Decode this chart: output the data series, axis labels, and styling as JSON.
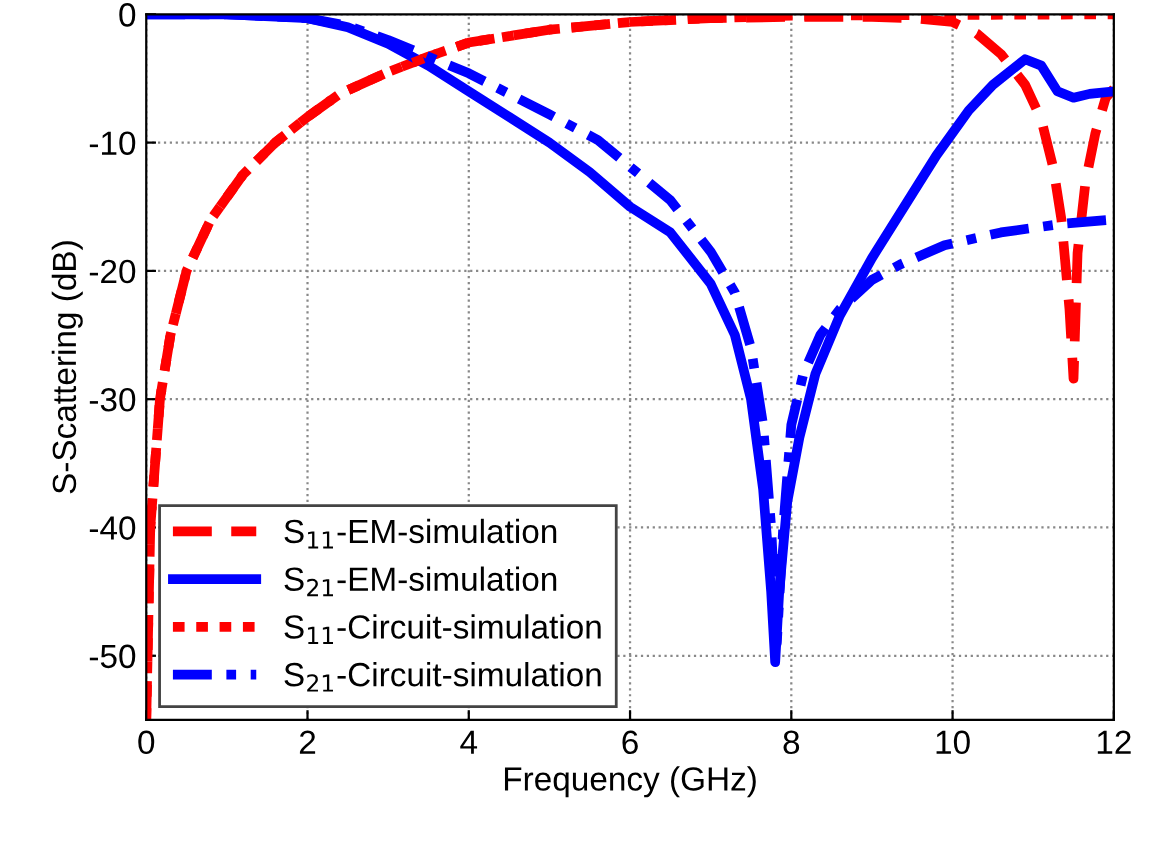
{
  "chart_data": {
    "type": "line",
    "xlabel": "Frequency (GHz)",
    "ylabel": "S-Scattering (dB)",
    "xlim": [
      0,
      12
    ],
    "xticks": [
      0,
      2,
      4,
      6,
      8,
      10,
      12
    ],
    "ylim": [
      -55,
      0
    ],
    "yticks": [
      0,
      -10,
      -20,
      -30,
      -40,
      -50
    ],
    "grid": true,
    "legend": "bottom left",
    "marker": "none",
    "series": [
      {
        "name": "S$_{11}$-EM-simulation",
        "color": "#ff0000",
        "line_style": "dashed",
        "x": [
          0,
          0.05,
          0.17,
          0.3,
          0.5,
          0.8,
          1.2,
          1.6,
          2,
          2.4,
          3,
          3.5,
          4,
          5,
          6,
          7,
          8,
          9,
          9.5,
          10,
          10.3,
          10.6,
          10.9,
          11.1,
          11.25,
          11.35,
          11.45,
          11.5,
          11.55,
          11.65,
          11.77,
          11.9,
          12
        ],
        "values": [
          -55,
          -40,
          -30,
          -25,
          -20,
          -16,
          -12.5,
          -10,
          -8,
          -6.2,
          -4.5,
          -3.3,
          -2.2,
          -1.2,
          -0.6,
          -0.3,
          -0.2,
          -0.2,
          -0.3,
          -0.6,
          -1.5,
          -3.1,
          -5.5,
          -8.2,
          -12,
          -16,
          -23,
          -28.4,
          -18.6,
          -13,
          -9.3,
          -6.5,
          -5.8
        ]
      },
      {
        "name": "S$_{21}$-EM-simulation",
        "color": "#0000ff",
        "line_style": "solid",
        "x": [
          0,
          1,
          2,
          2.5,
          3,
          3.5,
          4,
          4.5,
          5,
          5.5,
          6,
          6.5,
          7,
          7.3,
          7.5,
          7.65,
          7.75,
          7.8,
          7.85,
          7.95,
          8.1,
          8.3,
          8.6,
          9,
          9.5,
          9.8,
          10.2,
          10.5,
          10.9,
          11.1,
          11.3,
          11.5,
          11.7,
          12
        ],
        "values": [
          0,
          0,
          -0.3,
          -1,
          -2.3,
          -4,
          -6,
          -8,
          -10,
          -12.3,
          -15,
          -17,
          -21,
          -25,
          -30,
          -37,
          -45,
          -50.5,
          -45,
          -38,
          -33,
          -28,
          -23.5,
          -19,
          -14,
          -11,
          -7.5,
          -5.5,
          -3.5,
          -4,
          -6,
          -6.5,
          -6.2,
          -6
        ]
      },
      {
        "name": "S$_{11}$-Circuit-simulation",
        "color": "#ff0000",
        "line_style": "dotted",
        "x": [
          0,
          0.05,
          0.17,
          0.3,
          0.5,
          0.8,
          1.2,
          1.6,
          2,
          2.4,
          3,
          3.5,
          4,
          5,
          6,
          7,
          8,
          12
        ],
        "values": [
          -55,
          -40,
          -30,
          -25,
          -20,
          -16,
          -12.5,
          -10,
          -8,
          -6.2,
          -4.5,
          -3.3,
          -2.2,
          -1.2,
          -0.6,
          -0.3,
          -0.1,
          0
        ]
      },
      {
        "name": "S$_{21}$-Circuit-simulation",
        "color": "#0000ff",
        "line_style": "dashdot",
        "x": [
          0,
          1,
          2,
          2.5,
          3,
          3.5,
          4,
          4.5,
          5,
          5.6,
          6.1,
          6.5,
          7,
          7.3,
          7.5,
          7.65,
          7.75,
          7.82,
          7.9,
          8,
          8.15,
          8.36,
          8.6,
          9,
          9.35,
          9.9,
          10.6,
          11.4,
          12
        ],
        "values": [
          0,
          0,
          -0.3,
          -0.9,
          -2,
          -3.3,
          -4.6,
          -6.2,
          -7.8,
          -9.8,
          -12.4,
          -14.5,
          -18.5,
          -21.7,
          -26,
          -32,
          -40,
          -49,
          -40,
          -32,
          -28,
          -25,
          -23,
          -20.7,
          -19.5,
          -18,
          -17,
          -16.3,
          -16
        ]
      }
    ]
  }
}
